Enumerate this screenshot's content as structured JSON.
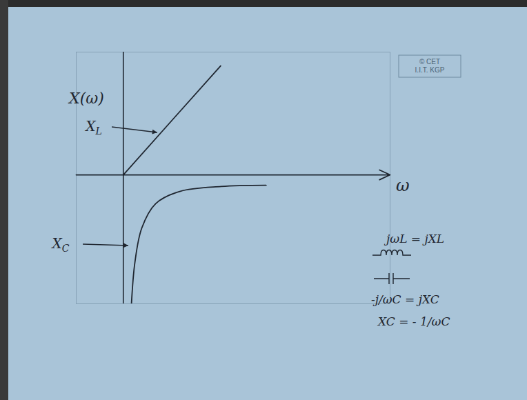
{
  "chart_data": {
    "type": "line",
    "y_label": "X(ω)",
    "x_label": "ω",
    "xlim": [
      -1.5,
      8.5
    ],
    "ylim": [
      -4.2,
      4
    ],
    "xticks": [],
    "yticks": [],
    "tick_labels": false,
    "grid": false,
    "series": [
      {
        "name": "XL",
        "color": "#1f2630",
        "x": [
          0,
          3.1
        ],
        "values": [
          0,
          3.55
        ]
      },
      {
        "name": "XC",
        "color": "#1f2630",
        "x": [
          0.26,
          0.37,
          0.59,
          1.03,
          1.8,
          3.12,
          4.55
        ],
        "values": [
          -4.2,
          -2.85,
          -1.73,
          -0.94,
          -0.54,
          -0.38,
          -0.34
        ]
      }
    ],
    "annotations": [
      "jωL = jXL",
      "-j/ωC = jXC",
      "XC = - 1/ωC"
    ],
    "credit": [
      "© CET",
      "I.I.T. KGP"
    ]
  }
}
